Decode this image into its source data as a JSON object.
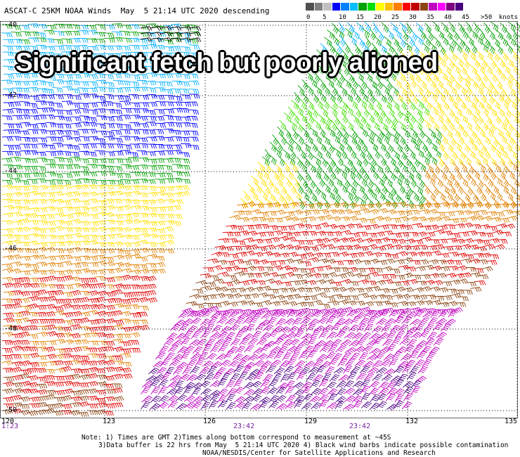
{
  "header": {
    "title": "ASCAT-C 25KM NOAA Winds  May  5 21:14 UTC 2020 descending"
  },
  "legend": {
    "labels": [
      "0",
      "5",
      "10",
      "15",
      "20",
      "25",
      "30",
      "35",
      "40",
      "45",
      ">50",
      "knots"
    ],
    "colors": [
      "#505050",
      "#808080",
      "#c0c0c0",
      "#0000ff",
      "#0080ff",
      "#00c0ff",
      "#00a000",
      "#00e000",
      "#ffff00",
      "#ffc000",
      "#ff8000",
      "#ff0000",
      "#c00000",
      "#8b4513",
      "#c000c0",
      "#ff00ff",
      "#800080",
      "#4b0082"
    ]
  },
  "overlay_text": "Significant fetch but poorly aligned",
  "axes": {
    "lon_ticks": [
      "120",
      "123",
      "126",
      "129",
      "132",
      "135"
    ],
    "lat_ticks": [
      "-40",
      "-42",
      "-44",
      "-46",
      "-48",
      "-50"
    ],
    "time_ticks": [
      "1:23",
      "23:42",
      "23:42"
    ]
  },
  "notes": {
    "line1": "Note: 1) Times are GMT 2)Times along bottom correspond to measurement at ~45S",
    "line2": "3)Data buffer is 22 hrs from May  5 21:14 UTC 2020 4) Black wind barbs indicate possible contamination",
    "line3": "NOAA/NESDIS/Center for Satellite Applications and Research"
  },
  "wind_colors": {
    "blue": "#0000ff",
    "cyan": "#00b0ff",
    "green": "#00a000",
    "lime": "#40e000",
    "yellow": "#ffe000",
    "orange": "#e08000",
    "red": "#e00000",
    "brown": "#8b4513",
    "magenta": "#c000c0",
    "purple": "#4b0082",
    "black": "#000000"
  }
}
